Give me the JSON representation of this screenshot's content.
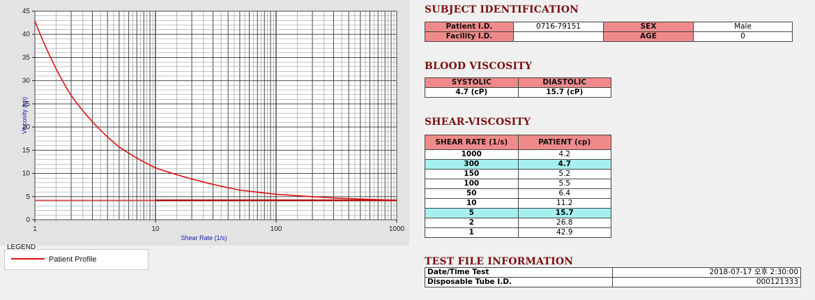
{
  "subject": {
    "title": "SUBJECT IDENTIFICATION",
    "patient_id_label": "Patient I.D.",
    "patient_id_value": "0716-79151",
    "sex_label": "SEX",
    "sex_value": "Male",
    "facility_id_label": "Facility I.D.",
    "facility_id_value": "",
    "age_label": "AGE",
    "age_value": "0"
  },
  "blood_viscosity": {
    "title": "BLOOD VISCOSITY",
    "systolic_label": "SYSTOLIC",
    "diastolic_label": "DIASTOLIC",
    "systolic_value": "4.7 (cP)",
    "diastolic_value": "15.7 (cP)"
  },
  "shear_viscosity": {
    "title": "SHEAR-VISCOSITY",
    "col_rate": "SHEAR RATE (1/s)",
    "col_patient": "PATIENT (cp)",
    "rows": [
      {
        "rate": "1000",
        "patient": "4.2",
        "highlight": false
      },
      {
        "rate": "300",
        "patient": "4.7",
        "highlight": true
      },
      {
        "rate": "150",
        "patient": "5.2",
        "highlight": false
      },
      {
        "rate": "100",
        "patient": "5.5",
        "highlight": false
      },
      {
        "rate": "50",
        "patient": "6.4",
        "highlight": false
      },
      {
        "rate": "10",
        "patient": "11.2",
        "highlight": false
      },
      {
        "rate": "5",
        "patient": "15.7",
        "highlight": true
      },
      {
        "rate": "2",
        "patient": "26.8",
        "highlight": false
      },
      {
        "rate": "1",
        "patient": "42.9",
        "highlight": false
      }
    ]
  },
  "test_file": {
    "title": "TEST FILE INFORMATION",
    "datetime_label": "Date/Time Test",
    "datetime_value": "2018-07-17  오후 2:30:00",
    "tube_label": "Disposable Tube I.D.",
    "tube_value": "000121333"
  },
  "legend": {
    "title": "LEGEND",
    "series_label": "Patient Profile"
  },
  "colors": {
    "header_bg": "#f08a8a",
    "highlight_bg": "#a6f0f0",
    "section_title": "#7a1010",
    "curve": "#dd1111",
    "reference_line": "#b01010"
  },
  "chart_data": {
    "type": "line",
    "xlabel": "Shear Rate (1/s)",
    "ylabel": "Viscosity (cp)",
    "x_scale": "log",
    "xlim": [
      1,
      1000
    ],
    "ylim": [
      0,
      45
    ],
    "x_ticks": [
      1,
      10,
      100,
      1000
    ],
    "y_ticks": [
      0,
      5,
      10,
      15,
      20,
      25,
      30,
      35,
      40,
      45
    ],
    "grid": true,
    "series": [
      {
        "name": "Patient Profile",
        "x": [
          1,
          2,
          5,
          10,
          50,
          100,
          150,
          300,
          1000
        ],
        "y": [
          42.9,
          26.8,
          15.7,
          11.2,
          6.4,
          5.5,
          5.2,
          4.7,
          4.2
        ]
      }
    ],
    "reference_lines": [
      {
        "y": 4.2,
        "x_from": 1,
        "x_to": 1000,
        "style": "thin"
      },
      {
        "y": 4.2,
        "x_from": 10,
        "x_to": 1000,
        "style": "thick"
      }
    ]
  }
}
